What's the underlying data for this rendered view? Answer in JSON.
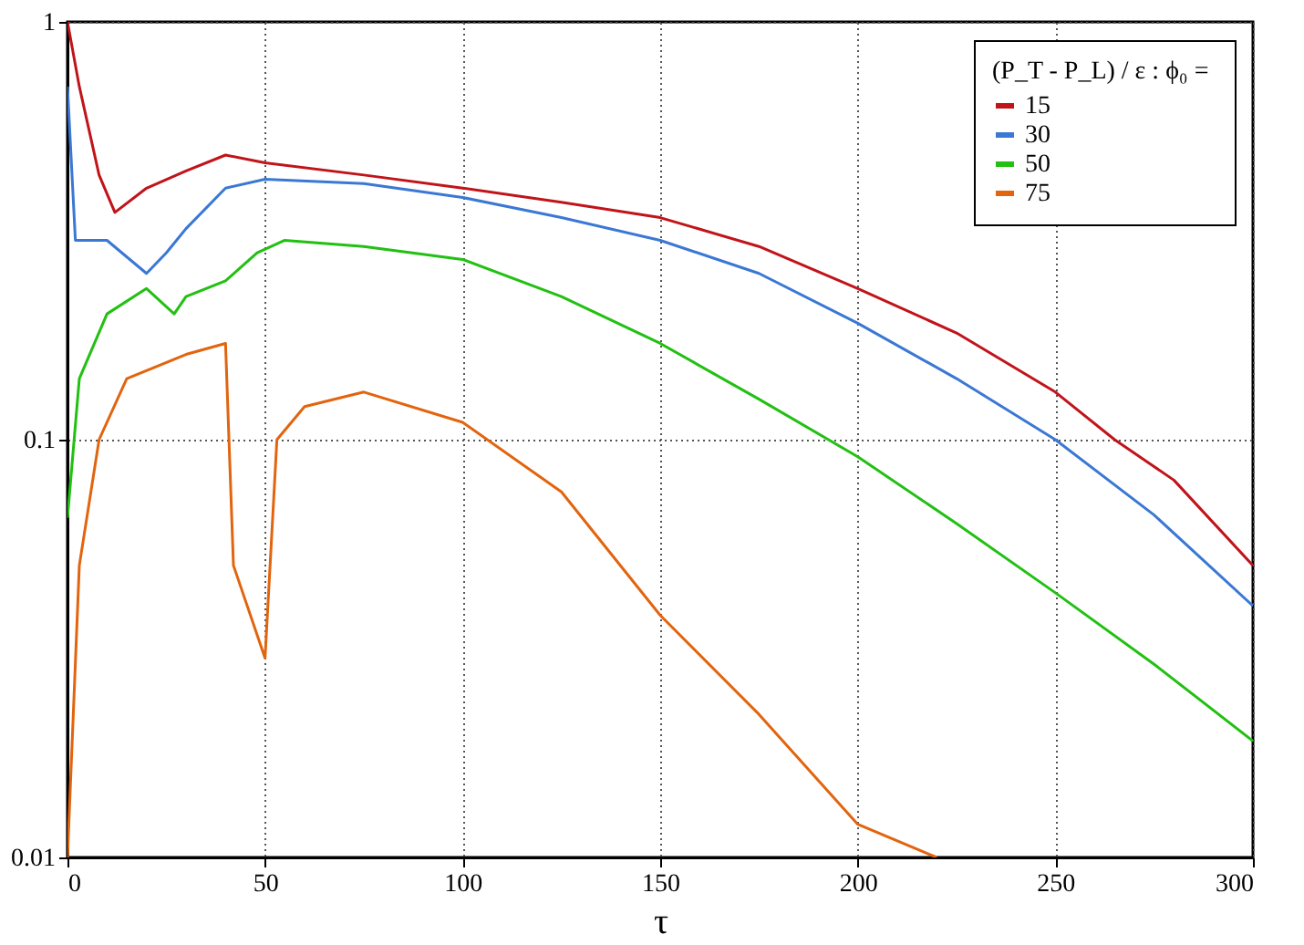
{
  "chart_data": {
    "type": "line",
    "xlabel": "τ",
    "legend_title": "(P_T - P_L) / ε :  ϕ₀ =",
    "legend": "top right",
    "log": "y",
    "grid": true,
    "xlim": [
      0,
      300
    ],
    "xticks": [
      0,
      50,
      100,
      150,
      200,
      250,
      300
    ],
    "ylim": [
      0.01,
      1
    ],
    "yticks": [
      0.01,
      0.1,
      1
    ],
    "series": [
      {
        "name": "15",
        "color": "#c0141a",
        "x": [
          0,
          3,
          8,
          12,
          20,
          30,
          40,
          50,
          75,
          100,
          125,
          150,
          175,
          200,
          225,
          250,
          265,
          280,
          300
        ],
        "values": [
          1,
          0.7,
          0.43,
          0.35,
          0.4,
          0.44,
          0.48,
          0.46,
          0.43,
          0.4,
          0.37,
          0.34,
          0.29,
          0.23,
          0.18,
          0.13,
          0.1,
          0.08,
          0.05
        ]
      },
      {
        "name": "30",
        "color": "#3a78d4",
        "x": [
          0,
          2,
          10,
          20,
          25,
          30,
          40,
          50,
          75,
          100,
          125,
          150,
          175,
          200,
          225,
          250,
          275,
          300
        ],
        "values": [
          0.7,
          0.3,
          0.3,
          0.25,
          0.28,
          0.32,
          0.4,
          0.42,
          0.41,
          0.38,
          0.34,
          0.3,
          0.25,
          0.19,
          0.14,
          0.1,
          0.066,
          0.04
        ]
      },
      {
        "name": "50",
        "color": "#22c012",
        "x": [
          0,
          3,
          10,
          20,
          27,
          30,
          40,
          48,
          55,
          75,
          100,
          125,
          150,
          175,
          200,
          225,
          250,
          275,
          300
        ],
        "values": [
          0.065,
          0.14,
          0.2,
          0.23,
          0.2,
          0.22,
          0.24,
          0.28,
          0.3,
          0.29,
          0.27,
          0.22,
          0.17,
          0.125,
          0.091,
          0.063,
          0.043,
          0.029,
          0.019
        ]
      },
      {
        "name": "75",
        "color": "#e2640e",
        "x": [
          0,
          3,
          8,
          15,
          30,
          40,
          42,
          50,
          53,
          60,
          75,
          100,
          125,
          150,
          175,
          200,
          220
        ],
        "values": [
          0.01,
          0.05,
          0.1,
          0.14,
          0.16,
          0.17,
          0.05,
          0.03,
          0.1,
          0.12,
          0.13,
          0.11,
          0.075,
          0.038,
          0.022,
          0.012,
          0.01
        ]
      }
    ]
  }
}
